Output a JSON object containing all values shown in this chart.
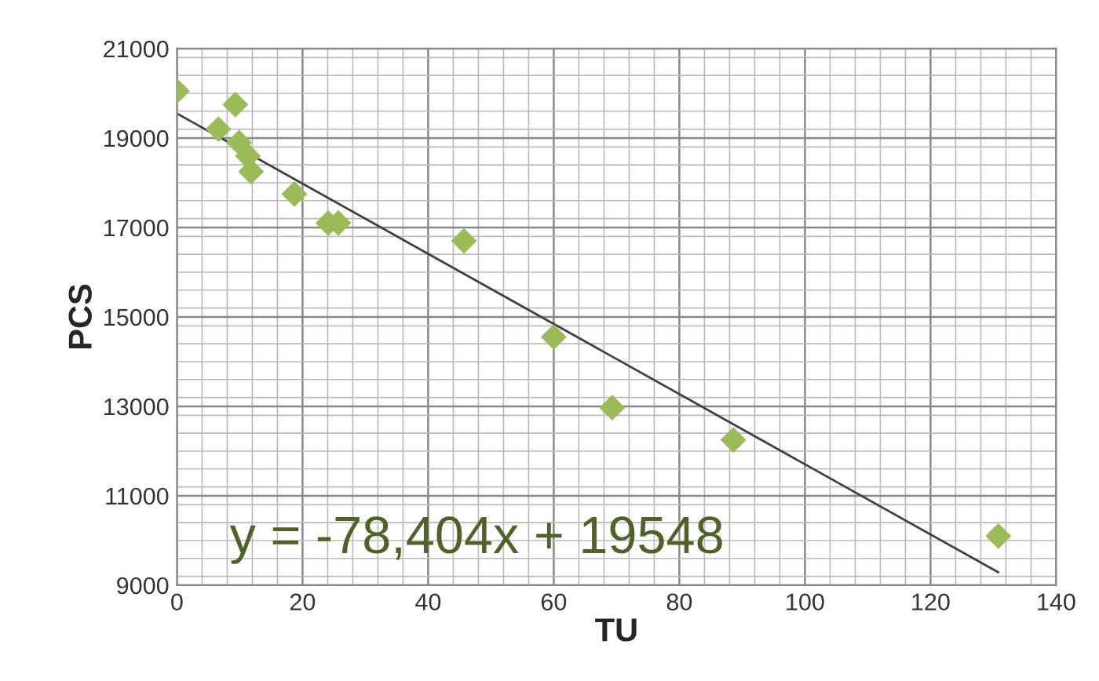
{
  "chart_data": {
    "type": "scatter",
    "xlabel": "TU",
    "ylabel": "PCS",
    "series": [
      {
        "color": "#9bbb59",
        "marker": "diamond",
        "x": [
          0,
          6.6,
          9.3,
          9.9,
          11.3,
          11.8,
          18.7,
          24.1,
          25.7,
          45.7,
          60,
          69.3,
          88.6,
          130.8
        ],
        "values": [
          20050,
          19200,
          19750,
          18900,
          18600,
          18250,
          17750,
          17100,
          17100,
          16700,
          14550,
          12970,
          12250,
          10100
        ]
      },
      {
        "type": "line",
        "color": "#404040",
        "marker": "none",
        "x": [
          0,
          130.8
        ],
        "values": [
          19550,
          9290
        ]
      }
    ],
    "annotations": [
      "y = -78,404x + 19548"
    ],
    "xlim": [
      0,
      140
    ],
    "xticks": [
      0,
      20,
      40,
      60,
      80,
      100,
      120,
      140
    ],
    "ylim": [
      9000,
      21000
    ],
    "yticks": [
      9000,
      11000,
      13000,
      15000,
      17000,
      19000,
      21000
    ],
    "grid": true,
    "legend": false
  }
}
